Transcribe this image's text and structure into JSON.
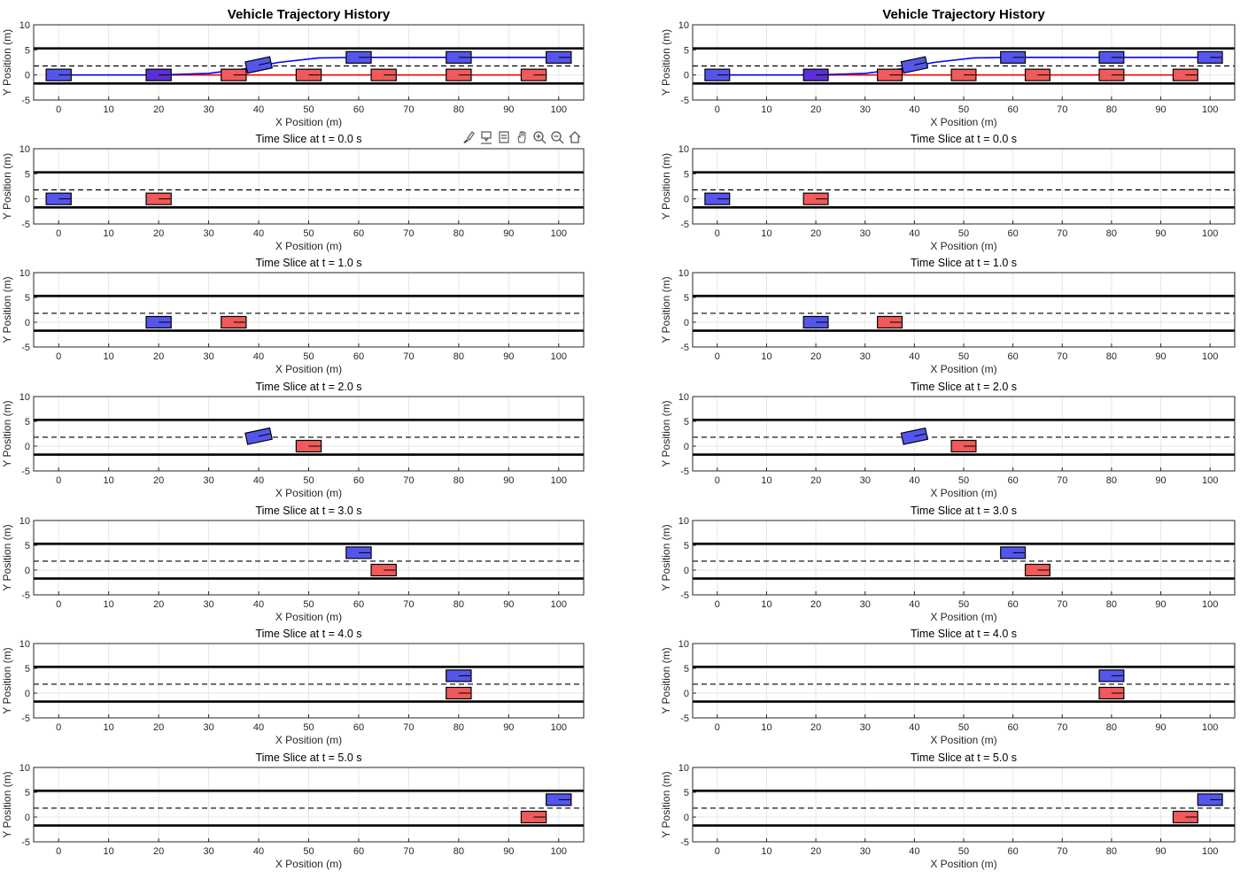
{
  "figures": [
    {
      "id": "left",
      "main_title": "Vehicle Trajectory History",
      "show_toolbar": true
    },
    {
      "id": "right",
      "main_title": "Vehicle Trajectory History",
      "show_toolbar": false
    }
  ],
  "toolbar": {
    "buttons": [
      {
        "name": "brush-data-icon",
        "label": "Brush"
      },
      {
        "name": "data-tips-icon",
        "label": "Data Tips"
      },
      {
        "name": "restore-view-icon",
        "label": "Restore"
      },
      {
        "name": "pan-icon",
        "label": "Pan"
      },
      {
        "name": "zoom-in-icon",
        "label": "Zoom In"
      },
      {
        "name": "zoom-out-icon",
        "label": "Zoom Out"
      },
      {
        "name": "home-icon",
        "label": "Home"
      }
    ]
  },
  "colors": {
    "ego": "#5555ee",
    "ego_path": "#0000ff",
    "lead": "#f05a5a",
    "lead_path": "#ff0000",
    "overlap": "#5a2fd6",
    "lane_solid": "#000000",
    "grid": "#e6e6e6"
  },
  "chart_data": [
    {
      "type": "scatter",
      "panel": "history",
      "title": "Vehicle Trajectory History",
      "xlabel": "X Position (m)",
      "ylabel": "Y Position (m)",
      "xlim": [
        -5,
        105
      ],
      "ylim": [
        -5,
        10
      ],
      "xticks": [
        0,
        10,
        20,
        30,
        40,
        50,
        60,
        70,
        80,
        90,
        100
      ],
      "yticks": [
        -5,
        0,
        5,
        10
      ],
      "grid": true,
      "lanes": {
        "solid": [
          5.3,
          -1.7
        ],
        "dashed": [
          1.8
        ]
      },
      "series": [
        {
          "role": "ego",
          "path": [
            [
              0,
              0
            ],
            [
              20,
              0
            ],
            [
              30,
              0.3
            ],
            [
              37,
              1.2
            ],
            [
              44,
              2.5
            ],
            [
              52,
              3.4
            ],
            [
              60,
              3.5
            ],
            [
              80,
              3.5
            ],
            [
              100,
              3.5
            ]
          ],
          "boxes": [
            [
              0,
              0,
              0
            ],
            [
              20,
              0,
              0
            ],
            [
              40,
              2,
              12
            ],
            [
              60,
              3.5,
              0
            ],
            [
              80,
              3.5,
              0
            ],
            [
              100,
              3.5,
              0
            ]
          ]
        },
        {
          "role": "lead",
          "path": [
            [
              20,
              0
            ],
            [
              95,
              0
            ]
          ],
          "boxes": [
            [
              20,
              0,
              0
            ],
            [
              35,
              0,
              0
            ],
            [
              50,
              0,
              0
            ],
            [
              65,
              0,
              0
            ],
            [
              80,
              0,
              0
            ],
            [
              95,
              0,
              0
            ]
          ]
        }
      ]
    },
    {
      "type": "scatter",
      "panel": "slice",
      "title": "Time Slice at t = 0.0 s",
      "xlabel": "X Position (m)",
      "ylabel": "Y Position (m)",
      "xlim": [
        -5,
        105
      ],
      "ylim": [
        -5,
        10
      ],
      "xticks": [
        0,
        10,
        20,
        30,
        40,
        50,
        60,
        70,
        80,
        90,
        100
      ],
      "yticks": [
        -5,
        0,
        5,
        10
      ],
      "grid": true,
      "ego": [
        0,
        0,
        0
      ],
      "lead": [
        20,
        0,
        0
      ]
    },
    {
      "type": "scatter",
      "panel": "slice",
      "title": "Time Slice at t = 1.0 s",
      "xlabel": "X Position (m)",
      "ylabel": "Y Position (m)",
      "xlim": [
        -5,
        105
      ],
      "ylim": [
        -5,
        10
      ],
      "xticks": [
        0,
        10,
        20,
        30,
        40,
        50,
        60,
        70,
        80,
        90,
        100
      ],
      "yticks": [
        -5,
        0,
        5,
        10
      ],
      "grid": true,
      "ego": [
        20,
        0,
        0
      ],
      "lead": [
        35,
        0,
        0
      ]
    },
    {
      "type": "scatter",
      "panel": "slice",
      "title": "Time Slice at t = 2.0 s",
      "xlabel": "X Position (m)",
      "ylabel": "Y Position (m)",
      "xlim": [
        -5,
        105
      ],
      "ylim": [
        -5,
        10
      ],
      "xticks": [
        0,
        10,
        20,
        30,
        40,
        50,
        60,
        70,
        80,
        90,
        100
      ],
      "yticks": [
        -5,
        0,
        5,
        10
      ],
      "grid": true,
      "ego": [
        40,
        2,
        12
      ],
      "lead": [
        50,
        0,
        0
      ]
    },
    {
      "type": "scatter",
      "panel": "slice",
      "title": "Time Slice at t = 3.0 s",
      "xlabel": "X Position (m)",
      "ylabel": "Y Position (m)",
      "xlim": [
        -5,
        105
      ],
      "ylim": [
        -5,
        10
      ],
      "xticks": [
        0,
        10,
        20,
        30,
        40,
        50,
        60,
        70,
        80,
        90,
        100
      ],
      "yticks": [
        -5,
        0,
        5,
        10
      ],
      "grid": true,
      "ego": [
        60,
        3.5,
        0
      ],
      "lead": [
        65,
        0,
        0
      ]
    },
    {
      "type": "scatter",
      "panel": "slice",
      "title": "Time Slice at t = 4.0 s",
      "xlabel": "X Position (m)",
      "ylabel": "Y Position (m)",
      "xlim": [
        -5,
        105
      ],
      "ylim": [
        -5,
        10
      ],
      "xticks": [
        0,
        10,
        20,
        30,
        40,
        50,
        60,
        70,
        80,
        90,
        100
      ],
      "yticks": [
        -5,
        0,
        5,
        10
      ],
      "grid": true,
      "ego": [
        80,
        3.5,
        0
      ],
      "lead": [
        80,
        0,
        0
      ]
    },
    {
      "type": "scatter",
      "panel": "slice",
      "title": "Time Slice at t = 5.0 s",
      "xlabel": "X Position (m)",
      "ylabel": "Y Position (m)",
      "xlim": [
        -5,
        105
      ],
      "ylim": [
        -5,
        10
      ],
      "xticks": [
        0,
        10,
        20,
        30,
        40,
        50,
        60,
        70,
        80,
        90,
        100
      ],
      "yticks": [
        -5,
        0,
        5,
        10
      ],
      "grid": true,
      "ego": [
        100,
        3.5,
        0
      ],
      "lead": [
        95,
        0,
        0
      ]
    }
  ]
}
